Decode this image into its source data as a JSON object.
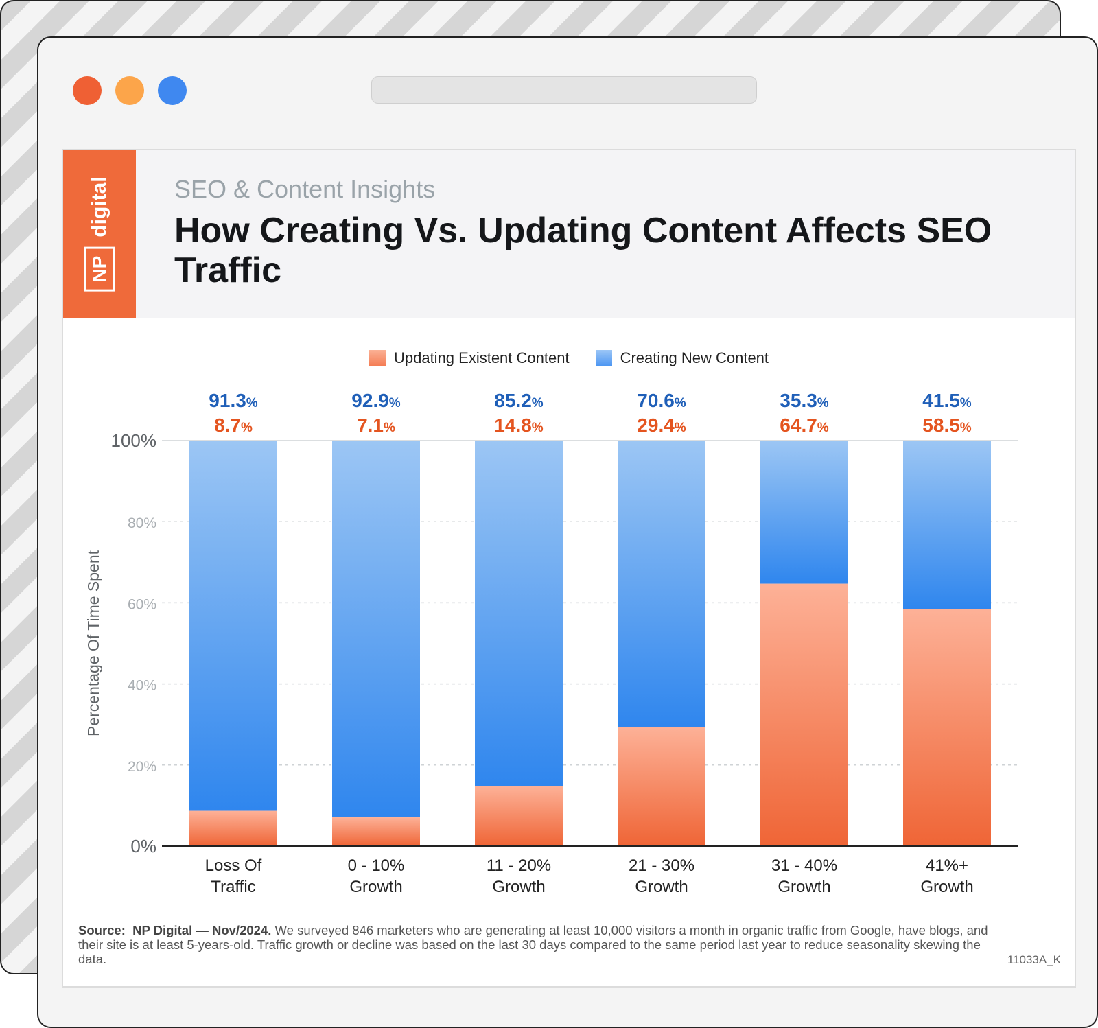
{
  "window": {
    "dot_colors": [
      "#ef6034",
      "#fca54a",
      "#3f88f0"
    ]
  },
  "header": {
    "brand": {
      "np": "NP",
      "word": "digital"
    },
    "kicker": "SEO & Content Insights",
    "title": "How Creating Vs. Updating Content Affects SEO Traffic"
  },
  "legend": [
    {
      "label": "Updating Existent Content",
      "color": "#f47b52"
    },
    {
      "label": "Creating New Content",
      "color": "#4a95f2"
    }
  ],
  "footer": {
    "source_label": "Source:",
    "source_name": "NP Digital — Nov/2024.",
    "text": "We surveyed 846 marketers who are generating at least 10,000 visitors a month in organic traffic from Google, have blogs, and their site is at least 5-years-old. Traffic growth or decline was based on the last 30 days compared to the same period last year to reduce seasonality skewing the data.",
    "code": "11033A_K"
  },
  "chart_data": {
    "type": "bar",
    "stacked": true,
    "ylabel": "Percentage Of Time Spent",
    "xlabel": "",
    "ylim": [
      0,
      100
    ],
    "yticks": [
      0,
      20,
      40,
      60,
      80,
      100
    ],
    "ytick_labels": [
      "0%",
      "20%",
      "40%",
      "60%",
      "80%",
      "100%"
    ],
    "grid": "dashed horizontal",
    "legend_position": "top-center",
    "categories": [
      [
        "Loss Of",
        "Traffic"
      ],
      [
        "0 - 10%",
        "Growth"
      ],
      [
        "11 - 20%",
        "Growth"
      ],
      [
        "21 - 30%",
        "Growth"
      ],
      [
        "31 - 40%",
        "Growth"
      ],
      [
        "41%+",
        "Growth"
      ]
    ],
    "series": [
      {
        "name": "Updating Existent Content",
        "color": "#f47b52",
        "values": [
          8.7,
          7.1,
          14.8,
          29.4,
          64.7,
          58.5
        ]
      },
      {
        "name": "Creating New Content",
        "color": "#4a95f2",
        "values": [
          91.3,
          92.9,
          85.2,
          70.6,
          35.3,
          41.5
        ]
      }
    ]
  }
}
